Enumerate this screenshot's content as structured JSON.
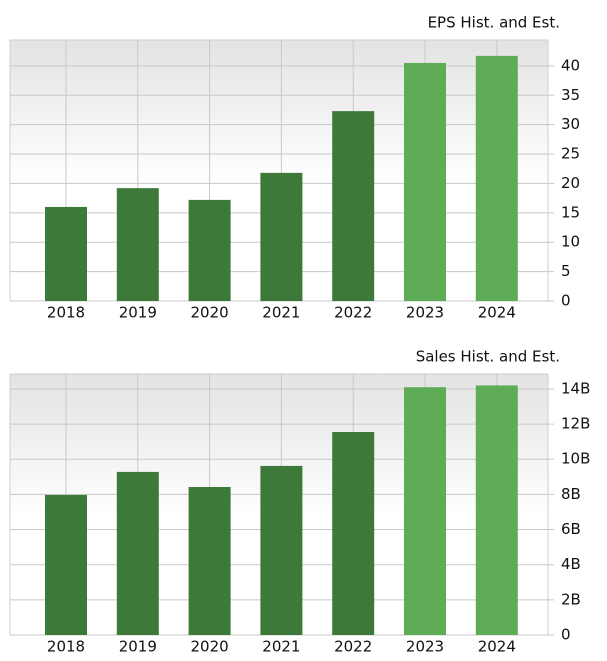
{
  "chart_data": [
    {
      "type": "bar",
      "title": "EPS Hist. and Est.",
      "categories": [
        "2018",
        "2019",
        "2020",
        "2021",
        "2022",
        "2023",
        "2024"
      ],
      "values": [
        16.0,
        19.2,
        17.2,
        21.8,
        32.3,
        40.5,
        41.7
      ],
      "colors": [
        "#3d7a3a",
        "#3d7a3a",
        "#3d7a3a",
        "#3d7a3a",
        "#3d7a3a",
        "#5eac55",
        "#5eac55"
      ],
      "ylim": [
        0,
        44.4
      ],
      "yticks": [
        0,
        5,
        10,
        15,
        20,
        25,
        30,
        35,
        40
      ],
      "grid": true
    },
    {
      "type": "bar",
      "title": "Sales Hist. and Est.",
      "categories": [
        "2018",
        "2019",
        "2020",
        "2021",
        "2022",
        "2023",
        "2024"
      ],
      "values": [
        7970000000,
        9280000000,
        8420000000,
        9620000000,
        11550000000,
        14100000000,
        14200000000
      ],
      "colors": [
        "#3d7a3a",
        "#3d7a3a",
        "#3d7a3a",
        "#3d7a3a",
        "#3d7a3a",
        "#5eac55",
        "#5eac55"
      ],
      "ylim": [
        0,
        14850000000
      ],
      "yticks": [
        0,
        {
          "value": 2000000000,
          "label": "2B"
        },
        {
          "value": 4000000000,
          "label": "4B"
        },
        {
          "value": 6000000000,
          "label": "6B"
        },
        {
          "value": 8000000000,
          "label": "8B"
        },
        {
          "value": 10000000000,
          "label": "10B"
        },
        {
          "value": 12000000000,
          "label": "12B"
        },
        {
          "value": 14000000000,
          "label": "14B"
        }
      ],
      "grid": true
    }
  ]
}
